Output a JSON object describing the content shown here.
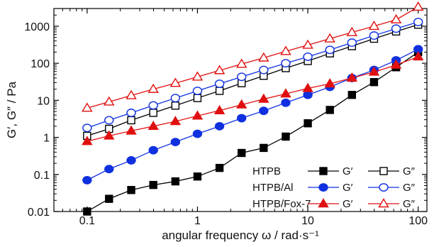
{
  "chart_data": {
    "type": "line",
    "title": "",
    "xlabel": "angular frequency ω / rad·s⁻¹",
    "ylabel": "G′, G″ / Pa",
    "xscale": "log",
    "yscale": "log",
    "xlim": [
      0.05,
      120
    ],
    "ylim": [
      0.01,
      3000
    ],
    "grid": false,
    "legend_placement": "bottom-right",
    "x_ticks": [
      {
        "value": 0.1,
        "label": "0.1"
      },
      {
        "value": 1,
        "label": "1"
      },
      {
        "value": 10,
        "label": "10"
      },
      {
        "value": 100,
        "label": "100"
      }
    ],
    "y_ticks": [
      {
        "value": 0.01,
        "label": "0.01"
      },
      {
        "value": 0.1,
        "label": "0.1"
      },
      {
        "value": 1,
        "label": "1"
      },
      {
        "value": 10,
        "label": "10"
      },
      {
        "value": 100,
        "label": "100"
      },
      {
        "value": 1000,
        "label": "1000"
      }
    ],
    "x": [
      0.1,
      0.158,
      0.251,
      0.398,
      0.631,
      1.0,
      1.585,
      2.512,
      3.981,
      6.31,
      10.0,
      15.85,
      25.12,
      39.81,
      63.1,
      100.0
    ],
    "series": [
      {
        "group": "HTPB",
        "name": "G′",
        "color": "#000000",
        "marker": "square",
        "filled": true,
        "values": [
          0.01,
          0.022,
          0.038,
          0.052,
          0.065,
          0.088,
          0.15,
          0.38,
          0.52,
          1.05,
          2.4,
          5.5,
          14,
          31,
          78,
          200
        ]
      },
      {
        "group": "HTPB",
        "name": "G″",
        "color": "#000000",
        "marker": "square",
        "filled": false,
        "values": [
          1.1,
          1.7,
          2.9,
          4.6,
          7.2,
          11.5,
          18,
          29,
          46,
          74,
          115,
          185,
          290,
          460,
          720,
          1100
        ]
      },
      {
        "group": "HTPB/Al",
        "name": "G′",
        "color": "#1030e0",
        "marker": "circle",
        "filled": true,
        "values": [
          0.07,
          0.14,
          0.24,
          0.45,
          0.75,
          1.25,
          2.0,
          3.3,
          5.2,
          8.6,
          14,
          23,
          40,
          66,
          120,
          240
        ]
      },
      {
        "group": "HTPB/Al",
        "name": "G″",
        "color": "#1030e0",
        "marker": "circle",
        "filled": false,
        "values": [
          1.8,
          2.9,
          4.6,
          7.3,
          11.5,
          18,
          28,
          43,
          66,
          100,
          150,
          230,
          360,
          560,
          860,
          1300
        ]
      },
      {
        "group": "HTPB/Fox-7",
        "name": "G′",
        "color": "#e01010",
        "marker": "triangle",
        "filled": true,
        "values": [
          0.78,
          1.1,
          1.5,
          2.0,
          2.7,
          3.8,
          5.3,
          7.6,
          10.8,
          15,
          21,
          28,
          40,
          58,
          90,
          150
        ]
      },
      {
        "group": "HTPB/Fox-7",
        "name": "G″",
        "color": "#e01010",
        "marker": "triangle",
        "filled": false,
        "values": [
          6.2,
          9.1,
          13.5,
          20,
          29,
          43,
          64,
          95,
          140,
          210,
          310,
          460,
          680,
          1000,
          1500,
          3300
        ]
      }
    ],
    "legend": {
      "rows": [
        {
          "label": "HTPB",
          "items": [
            0,
            1
          ]
        },
        {
          "label": "HTPB/Al",
          "items": [
            2,
            3
          ]
        },
        {
          "label": "HTPB/Fox-7",
          "items": [
            4,
            5
          ]
        }
      ]
    }
  }
}
